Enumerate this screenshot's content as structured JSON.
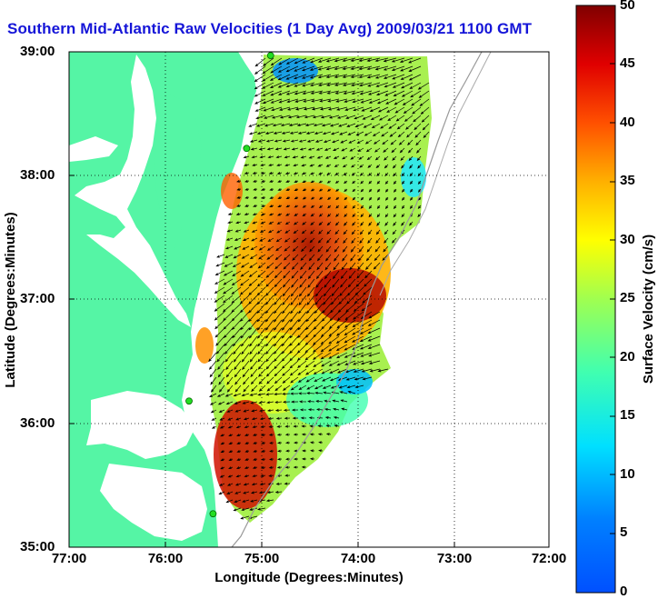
{
  "title": "Southern Mid-Atlantic Raw Velocities (1 Day Avg) 2009/03/21 1100 GMT",
  "axes": {
    "xlabel": "Longitude (Degrees:Minutes)",
    "ylabel": "Latitude (Degrees:Minutes)",
    "xticks": [
      "77:00",
      "76:00",
      "75:00",
      "74:00",
      "73:00",
      "72:00"
    ],
    "yticks": [
      "39:00",
      "38:00",
      "37:00",
      "36:00",
      "35:00"
    ],
    "xlim_deg_west": [
      77,
      72
    ],
    "ylim_deg_north": [
      35,
      39
    ],
    "grid": "dotted"
  },
  "colorbar": {
    "label": "Surface Velocity (cm/s)",
    "ticks": [
      "50",
      "45",
      "40",
      "35",
      "30",
      "25",
      "20",
      "15",
      "10",
      "5",
      "0"
    ],
    "range": [
      0,
      50
    ],
    "colormap": "jet"
  },
  "colors": {
    "title": "#1515d8",
    "land": "#55f5a5",
    "water": "#ffffff",
    "arrows": "#000000",
    "stations": "#22dd22"
  },
  "stations": [
    {
      "lon": 74.9,
      "lat": 38.97
    },
    {
      "lon": 75.15,
      "lat": 38.22
    },
    {
      "lon": 75.75,
      "lat": 36.18
    },
    {
      "lon": 75.5,
      "lat": 35.27
    }
  ]
}
